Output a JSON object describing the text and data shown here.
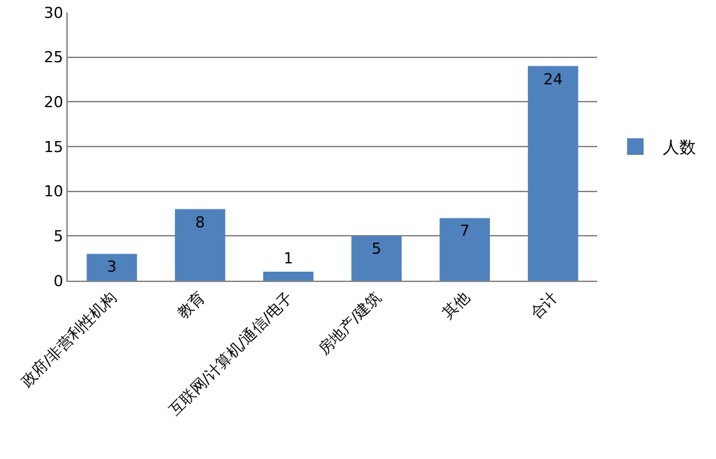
{
  "chart_data": {
    "type": "bar",
    "categories": [
      "政府/非营利性机构",
      "教育",
      "互联网/计算机/通信/电子",
      "房地产/建筑",
      "其他",
      "合计"
    ],
    "series": [
      {
        "name": "人数",
        "color": "#4f81bd",
        "values": [
          3,
          8,
          1,
          5,
          7,
          24
        ]
      }
    ],
    "ylim": [
      0,
      30
    ],
    "yticks": [
      0,
      5,
      10,
      15,
      20,
      25,
      30
    ],
    "grid": "y",
    "legend": "right",
    "data_labels": true
  }
}
